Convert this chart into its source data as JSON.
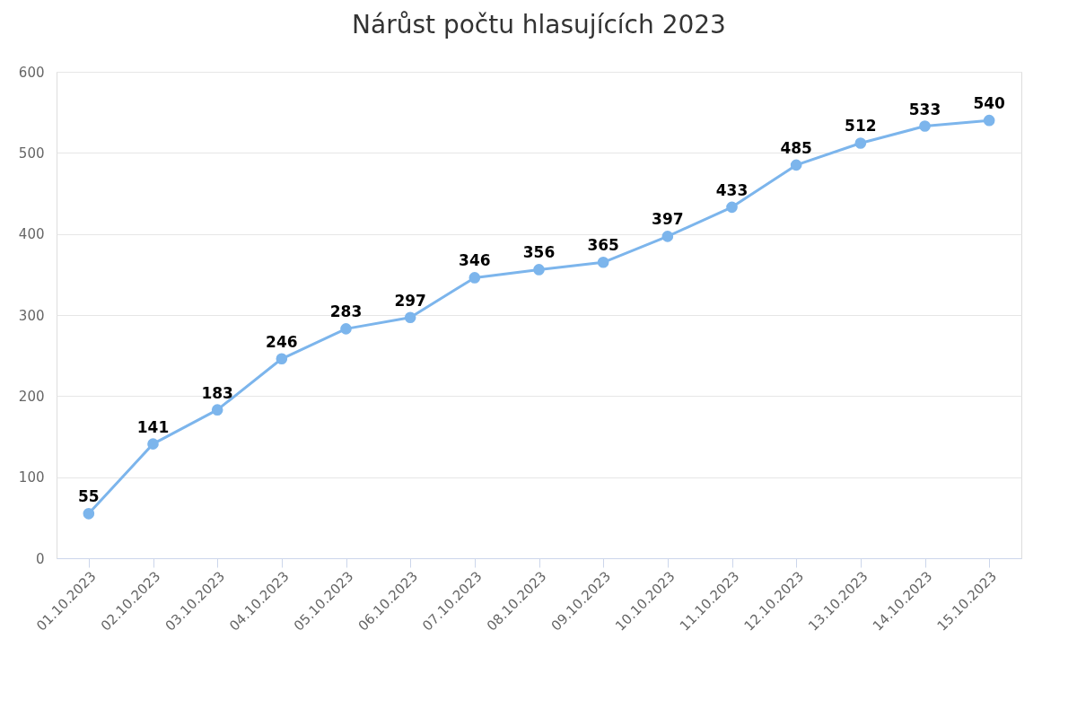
{
  "chart_data": {
    "type": "line",
    "title": "Nárůst počtu hlasujících 2023",
    "categories": [
      "01.10.2023",
      "02.10.2023",
      "03.10.2023",
      "04.10.2023",
      "05.10.2023",
      "06.10.2023",
      "07.10.2023",
      "08.10.2023",
      "09.10.2023",
      "10.10.2023",
      "11.10.2023",
      "12.10.2023",
      "13.10.2023",
      "14.10.2023",
      "15.10.2023"
    ],
    "series": [
      {
        "color": "#7cb5ec",
        "values": [
          55,
          141,
          183,
          246,
          283,
          297,
          346,
          356,
          365,
          397,
          433,
          485,
          512,
          533,
          540
        ]
      }
    ],
    "ylim": [
      0,
      600
    ],
    "yticks": [
      0,
      100,
      200,
      300,
      400,
      500,
      600
    ],
    "grid": "y",
    "marker": "circle",
    "line_style": "solid",
    "data_labels": true,
    "legend": false
  }
}
